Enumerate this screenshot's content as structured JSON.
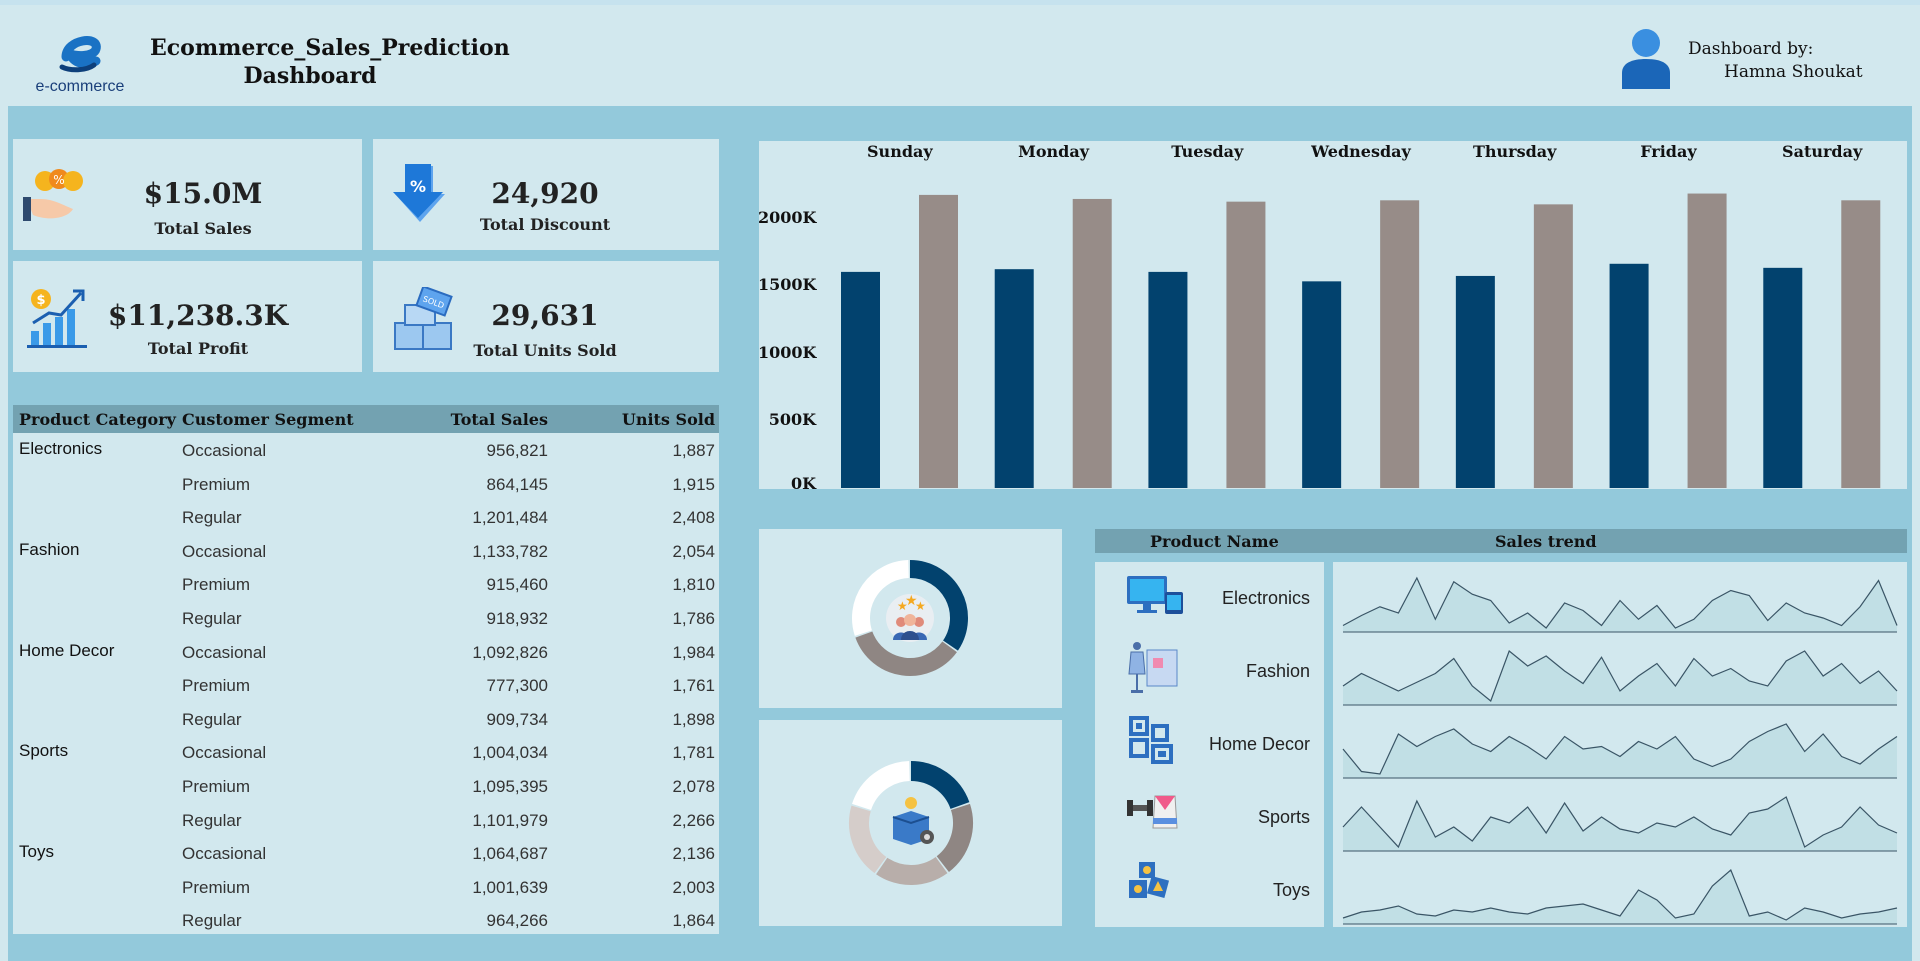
{
  "header": {
    "logo_text": "e-commerce",
    "title_line1": "Ecommerce_Sales_Prediction",
    "title_line2": "Dashboard",
    "byline_label": "Dashboard by:",
    "author": "Hamna Shoukat"
  },
  "kpis": [
    {
      "value": "$15.0M",
      "label": "Total Sales",
      "icon": "money-hand-icon"
    },
    {
      "value": "24,920",
      "label": "Total Discount",
      "icon": "discount-arrow-icon"
    },
    {
      "value": "$11,238.3K",
      "label": "Total Profit",
      "icon": "profit-chart-icon"
    },
    {
      "value": "29,631",
      "label": "Total Units Sold",
      "icon": "sold-out-boxes-icon"
    }
  ],
  "table": {
    "headers": [
      "Product Category",
      "Customer Segment",
      "Total Sales",
      "Units Sold"
    ],
    "groups": [
      {
        "category": "Electronics",
        "rows": [
          [
            "Occasional",
            "956,821",
            "1,887"
          ],
          [
            "Premium",
            "864,145",
            "1,915"
          ],
          [
            "Regular",
            "1,201,484",
            "2,408"
          ]
        ]
      },
      {
        "category": "Fashion",
        "rows": [
          [
            "Occasional",
            "1,133,782",
            "2,054"
          ],
          [
            "Premium",
            "915,460",
            "1,810"
          ],
          [
            "Regular",
            "918,932",
            "1,786"
          ]
        ]
      },
      {
        "category": "Home Decor",
        "rows": [
          [
            "Occasional",
            "1,092,826",
            "1,984"
          ],
          [
            "Premium",
            "777,300",
            "1,761"
          ],
          [
            "Regular",
            "909,734",
            "1,898"
          ]
        ]
      },
      {
        "category": "Sports",
        "rows": [
          [
            "Occasional",
            "1,004,034",
            "1,781"
          ],
          [
            "Premium",
            "1,095,395",
            "2,078"
          ],
          [
            "Regular",
            "1,101,979",
            "2,266"
          ]
        ]
      },
      {
        "category": "Toys",
        "rows": [
          [
            "Occasional",
            "1,064,687",
            "2,136"
          ],
          [
            "Premium",
            "1,001,639",
            "2,003"
          ],
          [
            "Regular",
            "964,266",
            "1,864"
          ]
        ]
      }
    ]
  },
  "chart_data": {
    "type": "bar",
    "categories": [
      "Sunday",
      "Monday",
      "Tuesday",
      "Wednesday",
      "Thursday",
      "Friday",
      "Saturday"
    ],
    "series": [
      {
        "values": [
          1600,
          1620,
          1600,
          1530,
          1570,
          1660,
          1630
        ],
        "color": "#02426e"
      },
      {
        "values": [
          2170,
          2140,
          2120,
          2130,
          2100,
          2180,
          2130
        ],
        "color": "#978c88"
      }
    ],
    "yticks": [
      "0K",
      "500K",
      "1000K",
      "1500K",
      "2000K"
    ],
    "ylim": [
      0,
      2300
    ],
    "grid": false
  },
  "donuts": [
    {
      "icon": "customer-rating-icon",
      "slices": [
        {
          "value": 35,
          "color": "#02426e"
        },
        {
          "value": 35,
          "color": "#8f8683"
        },
        {
          "value": 30,
          "color": "#ffffff"
        }
      ]
    },
    {
      "icon": "product-box-icon",
      "slices": [
        {
          "value": 20,
          "color": "#02426e"
        },
        {
          "value": 20,
          "color": "#8f8683"
        },
        {
          "value": 20,
          "color": "#b8aeaa"
        },
        {
          "value": 20,
          "color": "#d5cdca"
        },
        {
          "value": 20,
          "color": "#ffffff"
        }
      ]
    }
  ],
  "products": {
    "header_name": "Product Name",
    "header_trend": "Sales trend",
    "items": [
      {
        "name": "Electronics",
        "icon": "monitor-devices-icon",
        "trend": [
          10,
          18,
          25,
          20,
          48,
          15,
          45,
          35,
          30,
          12,
          20,
          8,
          28,
          22,
          10,
          30,
          15,
          26,
          8,
          15,
          30,
          38,
          34,
          14,
          28,
          20,
          16,
          10,
          25,
          46,
          10
        ]
      },
      {
        "name": "Fashion",
        "icon": "mannequin-fabric-icon",
        "trend": [
          12,
          22,
          15,
          8,
          15,
          22,
          34,
          12,
          0,
          40,
          28,
          36,
          24,
          14,
          35,
          8,
          20,
          30,
          12,
          34,
          20,
          26,
          16,
          12,
          32,
          40,
          20,
          30,
          14,
          24,
          8
        ]
      },
      {
        "name": "Home Decor",
        "icon": "decor-frames-icon",
        "trend": [
          20,
          2,
          0,
          32,
          22,
          30,
          36,
          24,
          18,
          30,
          22,
          12,
          30,
          20,
          22,
          14,
          26,
          20,
          30,
          12,
          6,
          12,
          26,
          34,
          40,
          18,
          32,
          14,
          8,
          20,
          30
        ]
      },
      {
        "name": "Sports",
        "icon": "sports-gear-icon",
        "trend": [
          20,
          40,
          20,
          0,
          46,
          10,
          20,
          6,
          30,
          24,
          40,
          14,
          44,
          16,
          30,
          18,
          14,
          24,
          20,
          30,
          18,
          12,
          34,
          38,
          50,
          0,
          12,
          20,
          40,
          22,
          14
        ]
      },
      {
        "name": "Toys",
        "icon": "toy-blocks-icon",
        "trend": [
          12,
          18,
          20,
          24,
          16,
          14,
          20,
          18,
          22,
          18,
          16,
          22,
          24,
          26,
          20,
          14,
          40,
          30,
          12,
          16,
          44,
          60,
          14,
          18,
          10,
          22,
          18,
          12,
          16,
          18,
          22
        ]
      }
    ]
  }
}
